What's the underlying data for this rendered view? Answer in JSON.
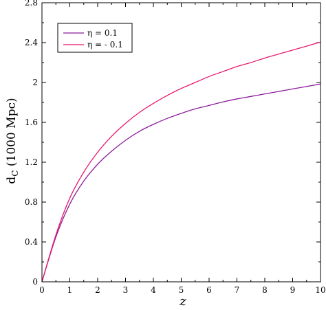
{
  "chart_data": {
    "type": "line",
    "xlabel": "z",
    "ylabel_main": "d",
    "ylabel_sub": "C",
    "ylabel_rest": " (1000 Mpc)",
    "xlim": [
      0,
      10
    ],
    "ylim": [
      0,
      2.8
    ],
    "xticks": [
      0,
      1,
      2,
      3,
      4,
      5,
      6,
      7,
      8,
      9,
      10
    ],
    "yticks": [
      0,
      0.4,
      0.8,
      1.2,
      1.6,
      2,
      2.4,
      2.8
    ],
    "ytick_labels": [
      "0",
      "0.4",
      "0.8",
      "1.2",
      "1.6",
      "2",
      "2.4",
      "2.8"
    ],
    "grid": false,
    "legend_position": "top-left",
    "series": [
      {
        "name": "η = 0.1",
        "color": "#8b1a9b",
        "x": [
          0,
          0.5,
          1,
          1.5,
          2,
          2.5,
          3,
          3.5,
          4,
          4.5,
          5,
          5.5,
          6,
          6.5,
          7,
          7.5,
          8,
          8.5,
          9,
          9.5,
          10
        ],
        "y": [
          0,
          0.45,
          0.78,
          1.01,
          1.18,
          1.31,
          1.42,
          1.51,
          1.58,
          1.64,
          1.69,
          1.735,
          1.77,
          1.805,
          1.835,
          1.86,
          1.885,
          1.91,
          1.935,
          1.96,
          1.985
        ]
      },
      {
        "name": "η = - 0.1",
        "color": "#e8176e",
        "x": [
          0,
          0.5,
          1,
          1.5,
          2,
          2.5,
          3,
          3.5,
          4,
          4.5,
          5,
          5.5,
          6,
          6.5,
          7,
          7.5,
          8,
          8.5,
          9,
          9.5,
          10
        ],
        "y": [
          0,
          0.47,
          0.84,
          1.1,
          1.3,
          1.46,
          1.59,
          1.7,
          1.79,
          1.87,
          1.94,
          2.0,
          2.06,
          2.11,
          2.16,
          2.2,
          2.245,
          2.285,
          2.325,
          2.365,
          2.405
        ]
      }
    ]
  }
}
